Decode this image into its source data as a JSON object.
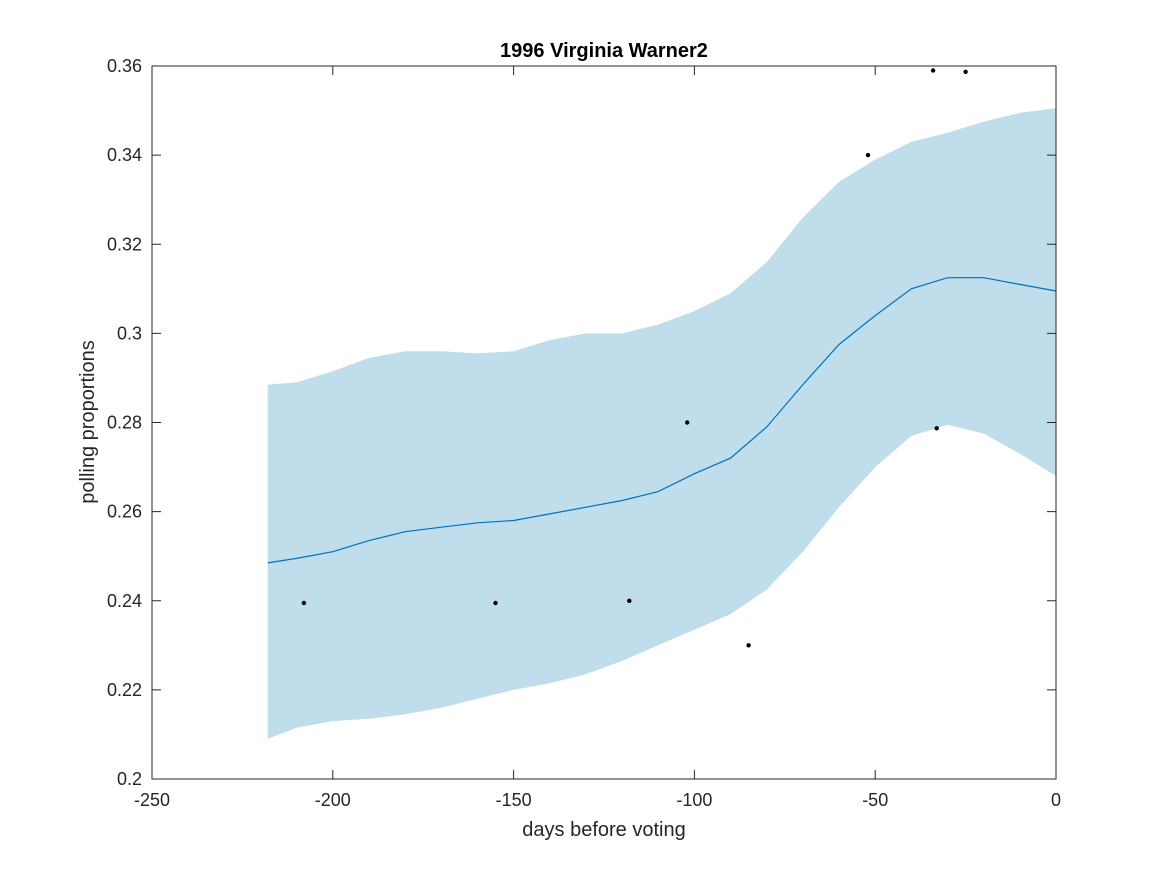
{
  "chart_data": {
    "type": "line",
    "title": "1996 Virginia Warner2",
    "xlabel": "days before voting",
    "ylabel": "polling proportions",
    "xlim": [
      -250,
      0
    ],
    "ylim": [
      0.2,
      0.36
    ],
    "xticks": [
      -250,
      -200,
      -150,
      -100,
      -50,
      0
    ],
    "xtick_labels": [
      "-250",
      "-200",
      "-150",
      "-100",
      "-50",
      "0"
    ],
    "yticks": [
      0.2,
      0.22,
      0.24,
      0.26,
      0.28,
      0.3,
      0.32,
      0.34,
      0.36
    ],
    "ytick_labels": [
      "0.2",
      "0.22",
      "0.24",
      "0.26",
      "0.28",
      "0.3",
      "0.32",
      "0.34",
      "0.36"
    ],
    "grid": false,
    "band": {
      "x": [
        -218,
        -210,
        -200,
        -190,
        -180,
        -170,
        -160,
        -150,
        -140,
        -130,
        -120,
        -110,
        -100,
        -90,
        -80,
        -70,
        -60,
        -50,
        -40,
        -30,
        -20,
        -10,
        0
      ],
      "upper": [
        0.2885,
        0.289,
        0.2915,
        0.2945,
        0.296,
        0.296,
        0.2955,
        0.296,
        0.2985,
        0.3,
        0.3,
        0.302,
        0.305,
        0.309,
        0.316,
        0.326,
        0.334,
        0.339,
        0.343,
        0.345,
        0.3475,
        0.3495,
        0.3505
      ],
      "lower": [
        0.209,
        0.2115,
        0.213,
        0.2135,
        0.2145,
        0.216,
        0.218,
        0.22,
        0.2215,
        0.2235,
        0.2265,
        0.23,
        0.2335,
        0.237,
        0.2425,
        0.251,
        0.261,
        0.27,
        0.277,
        0.2795,
        0.2775,
        0.273,
        0.268
      ],
      "color": "#c0ddeb"
    },
    "series": [
      {
        "type": "line",
        "color": "#0072bd",
        "x": [
          -218,
          -210,
          -200,
          -190,
          -180,
          -170,
          -160,
          -150,
          -140,
          -130,
          -120,
          -110,
          -100,
          -90,
          -80,
          -70,
          -60,
          -50,
          -40,
          -30,
          -20,
          -10,
          0
        ],
        "y": [
          0.2485,
          0.2495,
          0.251,
          0.2535,
          0.2555,
          0.2565,
          0.2575,
          0.258,
          0.2595,
          0.261,
          0.2625,
          0.2645,
          0.2685,
          0.272,
          0.279,
          0.2885,
          0.2975,
          0.304,
          0.31,
          0.3125,
          0.3125,
          0.311,
          0.3095
        ]
      },
      {
        "type": "scatter",
        "color": "#000000",
        "x": [
          -208,
          -155,
          -118,
          -102,
          -85,
          -52,
          -34,
          -33,
          -25
        ],
        "y": [
          0.2395,
          0.2395,
          0.24,
          0.28,
          0.23,
          0.34,
          0.359,
          0.2787,
          0.3587
        ]
      }
    ]
  }
}
